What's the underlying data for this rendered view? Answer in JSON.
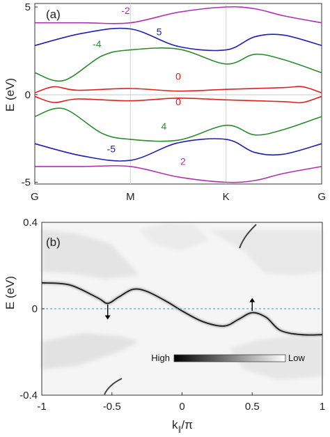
{
  "chart_data": [
    {
      "type": "line",
      "panel_label": "(a)",
      "ylabel": "E (eV)",
      "xlabel": "",
      "x_ticks": [
        "G",
        "M",
        "K",
        "G"
      ],
      "x_tick_positions": [
        0,
        1,
        2,
        3
      ],
      "y_ticks": [
        "-5",
        "0",
        "5"
      ],
      "y_tick_values": [
        -5,
        0,
        5
      ],
      "xlim": [
        0,
        3
      ],
      "ylim": [
        -5.1,
        5.2
      ],
      "grid": "vertical lines at M and K",
      "series": [
        {
          "name": "-2",
          "color": "#b030b0",
          "x": [
            0,
            0.5,
            1,
            1.5,
            2,
            2.3,
            2.6,
            3
          ],
          "y": [
            4.1,
            4.1,
            4.1,
            4.7,
            5.0,
            4.9,
            4.5,
            4.1
          ]
        },
        {
          "name": "5",
          "color": "#1e1eb4",
          "x": [
            0,
            0.5,
            1,
            1.5,
            2,
            2.3,
            2.6,
            3
          ],
          "y": [
            2.8,
            3.5,
            3.75,
            2.75,
            2.55,
            3.3,
            3.4,
            2.8
          ]
        },
        {
          "name": "-4",
          "color": "#2c8a2c",
          "x": [
            0,
            0.3,
            0.7,
            1,
            1.5,
            2,
            2.3,
            2.6,
            3
          ],
          "y": [
            1.25,
            0.8,
            2.2,
            2.55,
            2.6,
            1.75,
            2.3,
            2.0,
            1.25
          ]
        },
        {
          "name": "0",
          "color": "#e02020",
          "x": [
            0,
            0.2,
            0.45,
            1,
            1.5,
            2,
            2.6,
            2.8,
            3
          ],
          "y": [
            0.1,
            0.45,
            0.25,
            0.35,
            0.2,
            0.3,
            0.4,
            0.45,
            0.1
          ]
        },
        {
          "name": "0",
          "color": "#e02020",
          "x": [
            0,
            0.2,
            0.45,
            1,
            1.5,
            2,
            2.6,
            2.8,
            3
          ],
          "y": [
            -0.1,
            -0.45,
            -0.25,
            -0.35,
            -0.2,
            -0.3,
            -0.4,
            -0.45,
            -0.1
          ]
        },
        {
          "name": "4",
          "color": "#2c8a2c",
          "x": [
            0,
            0.3,
            0.7,
            1,
            1.5,
            2,
            2.3,
            2.6,
            3
          ],
          "y": [
            -1.25,
            -0.8,
            -2.2,
            -2.55,
            -2.6,
            -1.75,
            -2.3,
            -2.0,
            -1.25
          ]
        },
        {
          "name": "-5",
          "color": "#1e1eb4",
          "x": [
            0,
            0.5,
            1,
            1.5,
            2,
            2.3,
            2.6,
            3
          ],
          "y": [
            -2.8,
            -3.5,
            -3.75,
            -2.75,
            -2.55,
            -3.3,
            -3.4,
            -2.8
          ]
        },
        {
          "name": "2",
          "color": "#b030b0",
          "x": [
            0,
            0.5,
            1,
            1.5,
            2,
            2.3,
            2.6,
            3
          ],
          "y": [
            -4.1,
            -4.1,
            -4.1,
            -4.7,
            -5.0,
            -4.9,
            -4.5,
            -4.1
          ]
        }
      ],
      "annotations": [
        {
          "text": "-2",
          "x": 0.95,
          "y": 4.6,
          "color": "#b030b0"
        },
        {
          "text": "5",
          "x": 1.3,
          "y": 3.4,
          "color": "#1e1eb4"
        },
        {
          "text": "-4",
          "x": 0.65,
          "y": 2.7,
          "color": "#2c8a2c"
        },
        {
          "text": "0",
          "x": 1.5,
          "y": 0.85,
          "color": "#e02020"
        },
        {
          "text": "0",
          "x": 1.5,
          "y": -0.6,
          "color": "#e02020"
        },
        {
          "text": "4",
          "x": 1.35,
          "y": -2.0,
          "color": "#2c8a2c"
        },
        {
          "text": "-5",
          "x": 0.8,
          "y": -3.3,
          "color": "#1e1eb4"
        },
        {
          "text": "2",
          "x": 1.55,
          "y": -4.0,
          "color": "#b030b0"
        }
      ]
    },
    {
      "type": "heatmap",
      "panel_label": "(b)",
      "ylabel": "E (eV)",
      "xlabel": "k_∥/π",
      "xlabel_main": "k",
      "xlabel_sub": "∥",
      "xlabel_tail": "/π",
      "x_ticks": [
        "-1",
        "-0.5",
        "0",
        "0.5",
        "1"
      ],
      "x_tick_values": [
        -1,
        -0.5,
        0,
        0.5,
        1
      ],
      "y_ticks": [
        "-0.4",
        "0",
        "0.4"
      ],
      "y_tick_values": [
        -0.4,
        0,
        0.4
      ],
      "xlim": [
        -1,
        1
      ],
      "ylim": [
        -0.4,
        0.4
      ],
      "colorbar": {
        "high_label": "High",
        "low_label": "Low"
      },
      "fermi_level": 0,
      "edge_state": {
        "x": [
          -1,
          -0.8,
          -0.6,
          -0.53,
          -0.45,
          -0.35,
          -0.25,
          -0.1,
          0,
          0.15,
          0.3,
          0.4,
          0.5,
          0.6,
          0.7,
          0.85,
          1
        ],
        "y": [
          0.12,
          0.11,
          0.05,
          0.025,
          0.055,
          0.09,
          0.08,
          0.03,
          -0.01,
          -0.06,
          -0.08,
          -0.05,
          -0.018,
          -0.04,
          -0.1,
          -0.12,
          -0.12
        ]
      },
      "arrows": [
        {
          "x": -0.53,
          "from": 0.02,
          "to": -0.05,
          "direction": "down"
        },
        {
          "x": 0.5,
          "from": -0.01,
          "to": 0.05,
          "direction": "up"
        }
      ]
    }
  ]
}
